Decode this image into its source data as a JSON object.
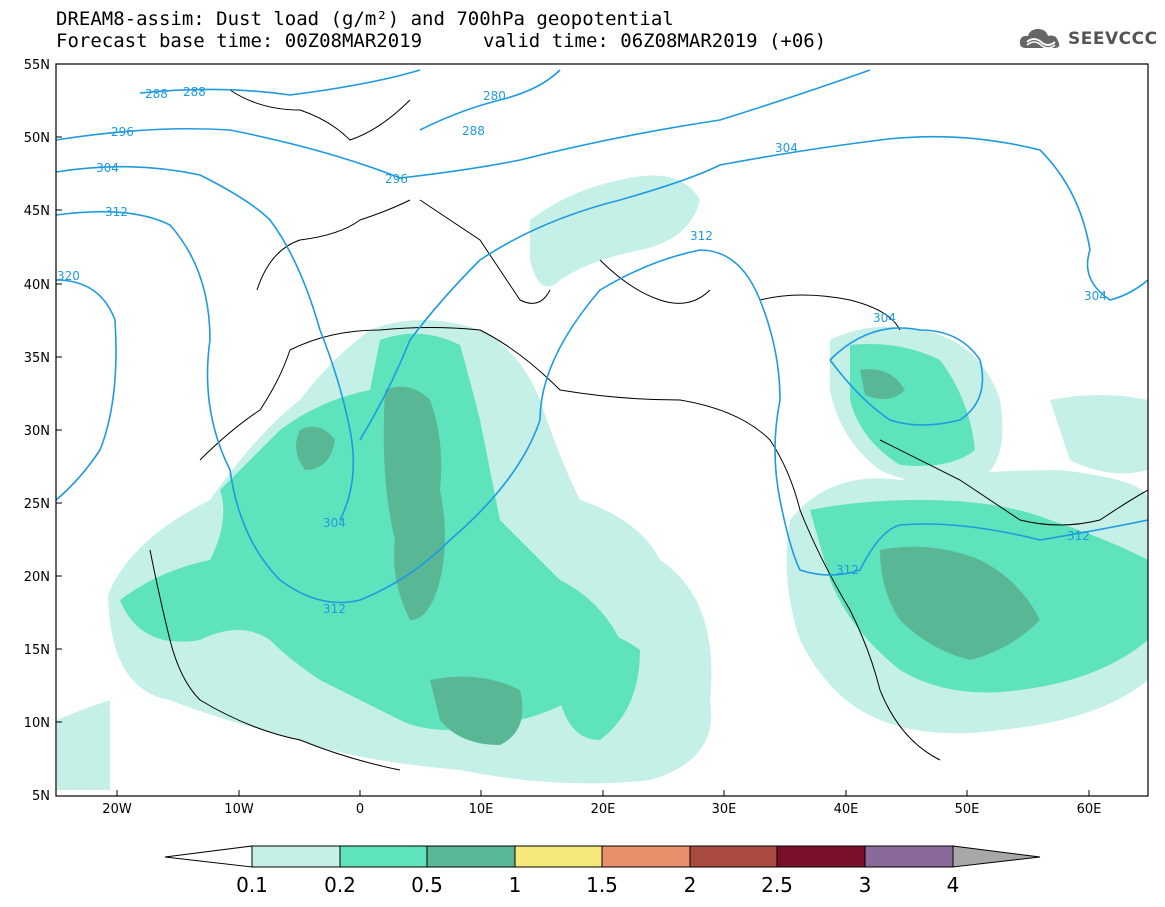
{
  "title_line1": "DREAM8-assim: Dust load (g/m²) and 700hPa geopotential",
  "title_line2_left": "Forecast base time: 00Z08MAR2019",
  "title_line2_right": "valid time: 06Z08MAR2019 (+06)",
  "logo": {
    "text": "SEEVCCC",
    "icon": "cloud-logo-icon"
  },
  "map": {
    "lat_labels": [
      "55N",
      "50N",
      "45N",
      "40N",
      "35N",
      "30N",
      "25N",
      "20N",
      "15N",
      "10N",
      "5N"
    ],
    "lon_labels": [
      "20W",
      "10W",
      "0",
      "10E",
      "20E",
      "30E",
      "40E",
      "50E",
      "60E"
    ],
    "contour_labels": [
      "288",
      "288",
      "296",
      "304",
      "312",
      "320",
      "280",
      "288",
      "296",
      "304",
      "312",
      "304",
      "304",
      "312",
      "312",
      "312",
      "304"
    ]
  },
  "colorbar": {
    "tick_labels": [
      "0.1",
      "0.2",
      "0.5",
      "1",
      "1.5",
      "2",
      "2.5",
      "3",
      "4"
    ],
    "colors": [
      "#c4f0e8",
      "#5ee3bd",
      "#5ab796",
      "#f5e97a",
      "#e8906b",
      "#a94b3e",
      "#7a0f2a",
      "#8a6a9b",
      "#a8a8a8"
    ],
    "under_color": "#ffffff"
  },
  "colors": {
    "contour": "#1e9be0",
    "coast": "#000000",
    "dust_light": "#c4f0e8",
    "dust_mid": "#5ee3bd",
    "dust_high": "#5ab796",
    "dust_peak": "#7d9c88"
  }
}
